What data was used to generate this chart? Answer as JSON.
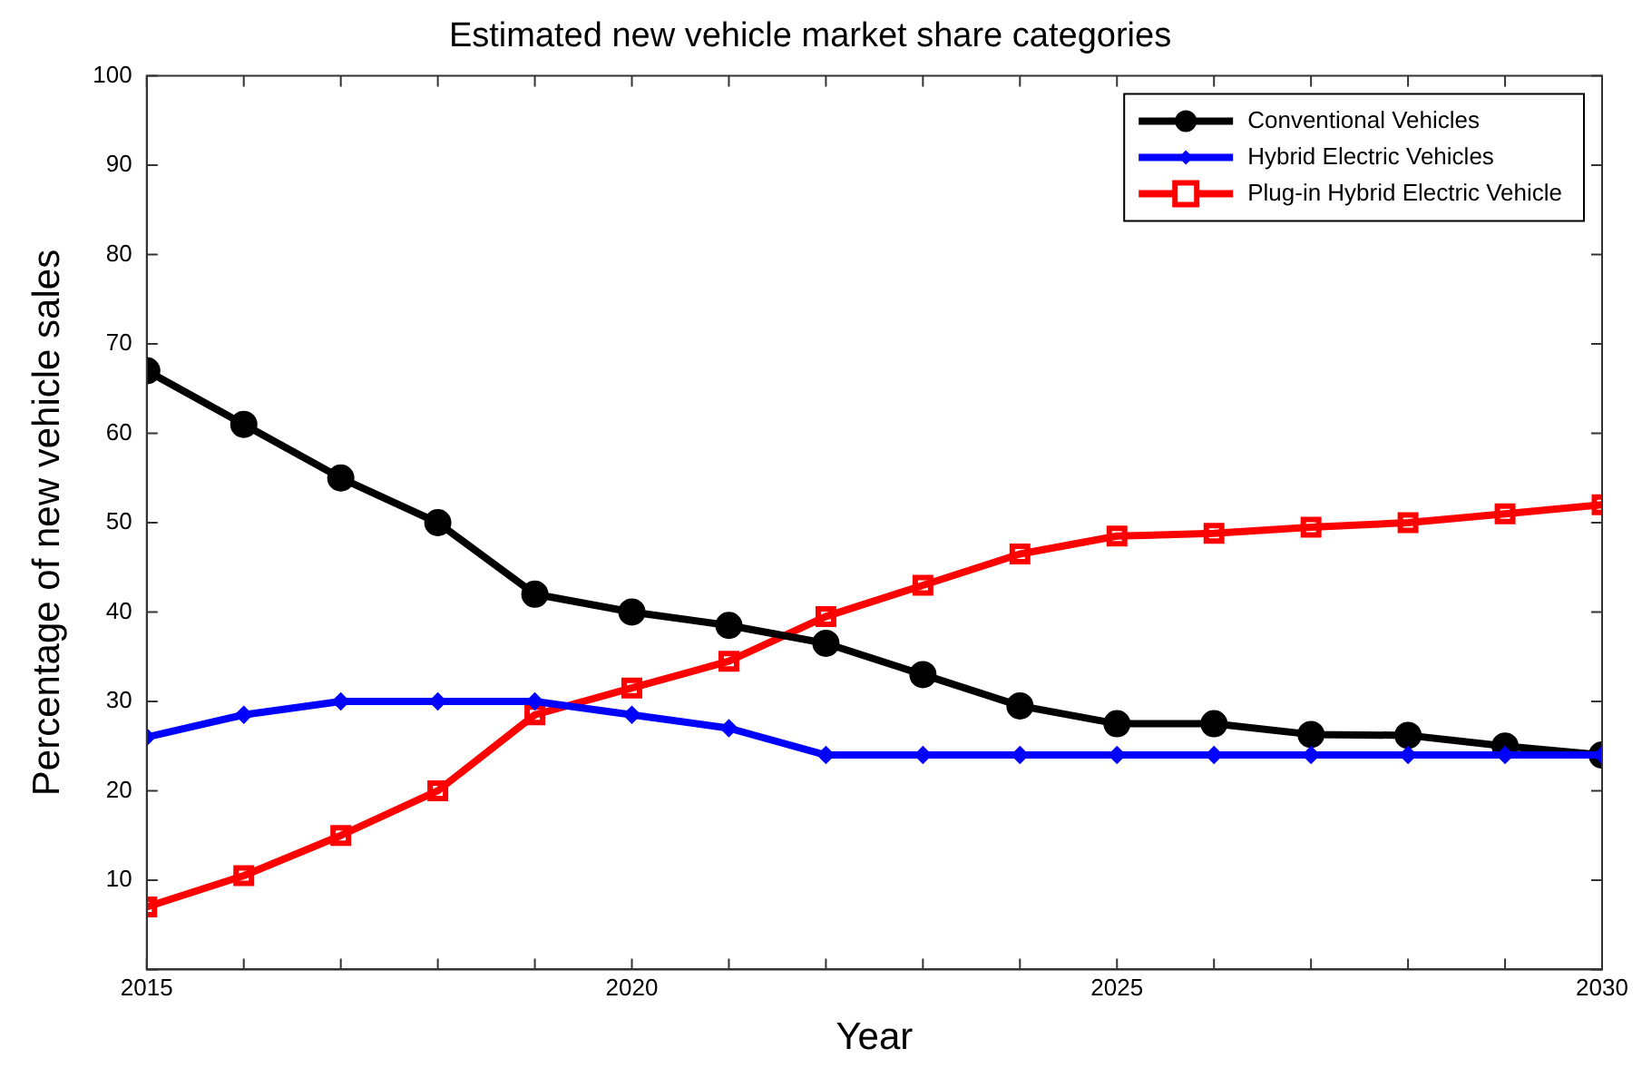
{
  "chart_data": {
    "type": "line",
    "title": "Estimated new vehicle market share categories",
    "xlabel": "Year",
    "ylabel": "Percentage of new vehicle sales",
    "x": [
      2015,
      2016,
      2017,
      2018,
      2019,
      2020,
      2021,
      2022,
      2023,
      2024,
      2025,
      2026,
      2027,
      2028,
      2029,
      2030
    ],
    "series": [
      {
        "name": "Conventional Vehicles",
        "color": "#000000",
        "marker": "circle",
        "values": [
          67,
          61,
          55,
          50,
          42,
          40,
          38.5,
          36.5,
          33,
          29.5,
          27.5,
          27.5,
          26.3,
          26.2,
          25,
          24
        ]
      },
      {
        "name": "Hybrid Electric Vehicles",
        "color": "#0000ff",
        "marker": "diamond",
        "values": [
          26,
          28.5,
          30,
          30,
          30,
          28.5,
          27,
          24,
          24,
          24,
          24,
          24,
          24,
          24,
          24,
          24
        ]
      },
      {
        "name": "Plug-in Hybrid Electric Vehicle",
        "color": "#ff0000",
        "marker": "square",
        "values": [
          7,
          10.5,
          15,
          20,
          28.5,
          31.5,
          34.5,
          39.5,
          43,
          46.5,
          48.5,
          48.8,
          49.5,
          50,
          51,
          52
        ]
      }
    ],
    "xlim": [
      2015,
      2030
    ],
    "xticks": [
      2015,
      {
        "value": 2016,
        "label": null
      },
      {
        "value": 2017,
        "label": null
      },
      {
        "value": 2018,
        "label": null
      },
      {
        "value": 2019,
        "label": null
      },
      2020,
      {
        "value": 2021,
        "label": null
      },
      {
        "value": 2022,
        "label": null
      },
      {
        "value": 2023,
        "label": null
      },
      {
        "value": 2024,
        "label": null
      },
      2025,
      {
        "value": 2026,
        "label": null
      },
      {
        "value": 2027,
        "label": null
      },
      {
        "value": 2028,
        "label": null
      },
      {
        "value": 2029,
        "label": null
      },
      2030
    ],
    "ylim": [
      0,
      100
    ],
    "yticks": [
      {
        "value": 0,
        "label": null
      },
      10,
      20,
      30,
      40,
      50,
      60,
      70,
      80,
      90,
      100
    ],
    "grid": false,
    "legend": "top right",
    "line_style": "solid"
  }
}
